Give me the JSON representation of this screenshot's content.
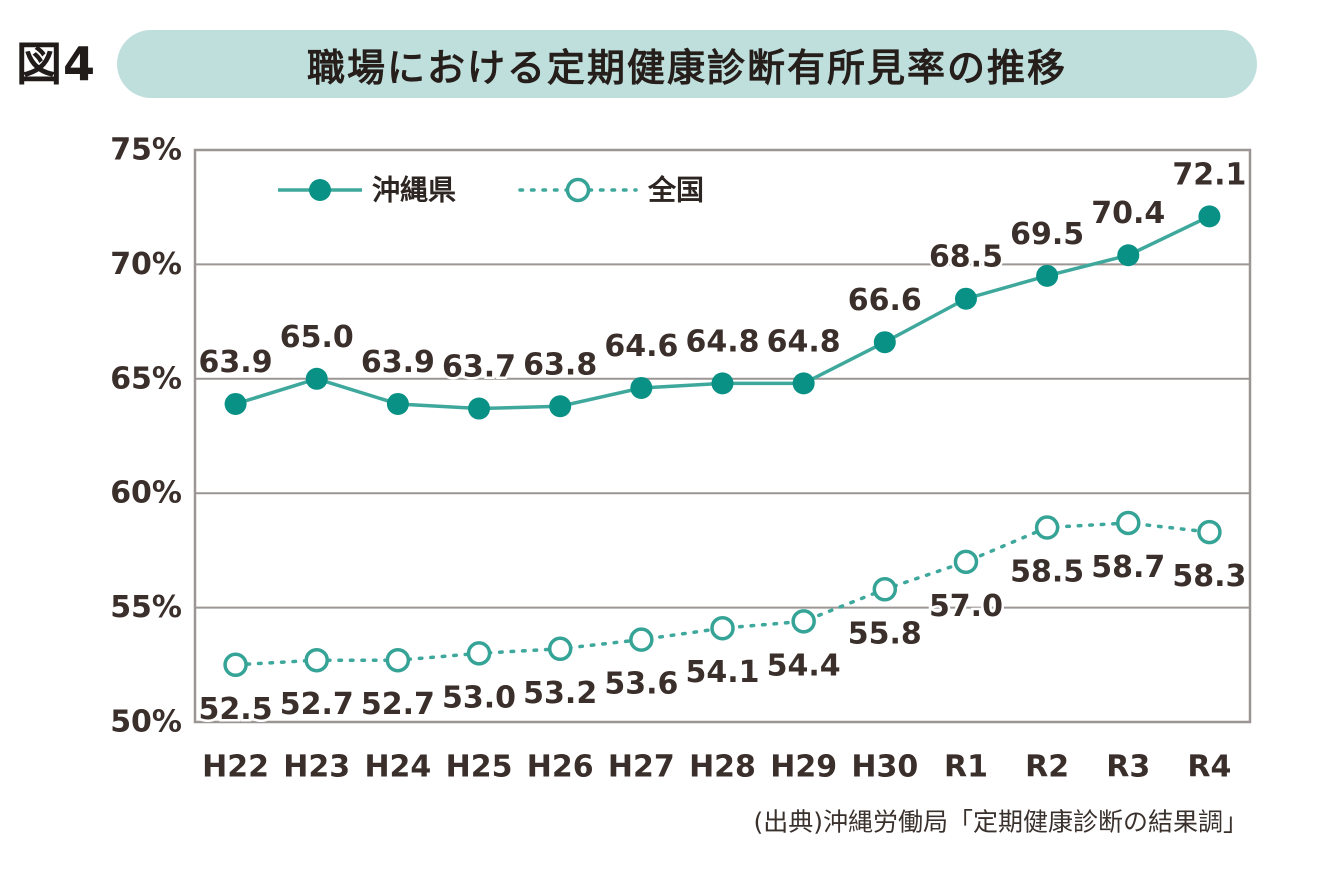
{
  "figure": {
    "label": "図4",
    "title": "職場における定期健康診断有所見率の推移"
  },
  "source": "(出典)沖縄労働局「定期健康診断の結果調」",
  "colors": {
    "marker_fill": "#089184",
    "line": "#3fa89c",
    "open_marker_stroke": "#35a396",
    "grid": "#9b9694",
    "text_dark": "#3a2f2b",
    "badge_bg": "#bfdfdd",
    "title_text": "#251e1b",
    "background": "#ffffff"
  },
  "chart_data": {
    "type": "line",
    "title": "職場における定期健康診断有所見率の推移",
    "xlabel": "",
    "ylabel": "",
    "ylim": [
      50,
      75
    ],
    "y_ticks": [
      "75%",
      "70%",
      "65%",
      "60%",
      "55%",
      "50%"
    ],
    "grid": true,
    "legend_position": "top-left-inside",
    "categories": [
      "H22",
      "H23",
      "H24",
      "H25",
      "H26",
      "H27",
      "H28",
      "H29",
      "H30",
      "R1",
      "R2",
      "R3",
      "R4"
    ],
    "series": [
      {
        "name": "沖縄県",
        "values": [
          63.9,
          65.0,
          63.9,
          63.7,
          63.8,
          64.6,
          64.8,
          64.8,
          66.6,
          68.5,
          69.5,
          70.4,
          72.1
        ],
        "labels": [
          "63.9",
          "65.0",
          "63.9",
          "63.7",
          "63.8",
          "64.6",
          "64.8",
          "64.8",
          "66.6",
          "68.5",
          "69.5",
          "70.4",
          "72.1"
        ],
        "line": "solid",
        "marker": "filled-circle",
        "label_position": "above"
      },
      {
        "name": "全国",
        "values": [
          52.5,
          52.7,
          52.7,
          53.0,
          53.2,
          53.6,
          54.1,
          54.4,
          55.8,
          57.0,
          58.5,
          58.7,
          58.3
        ],
        "labels": [
          "52.5",
          "52.7",
          "52.7",
          "53.0",
          "53.2",
          "53.6",
          "54.1",
          "54.4",
          "55.8",
          "57.0",
          "58.5",
          "58.7",
          "58.3"
        ],
        "line": "dotted",
        "marker": "open-circle",
        "label_position": "below"
      }
    ]
  }
}
